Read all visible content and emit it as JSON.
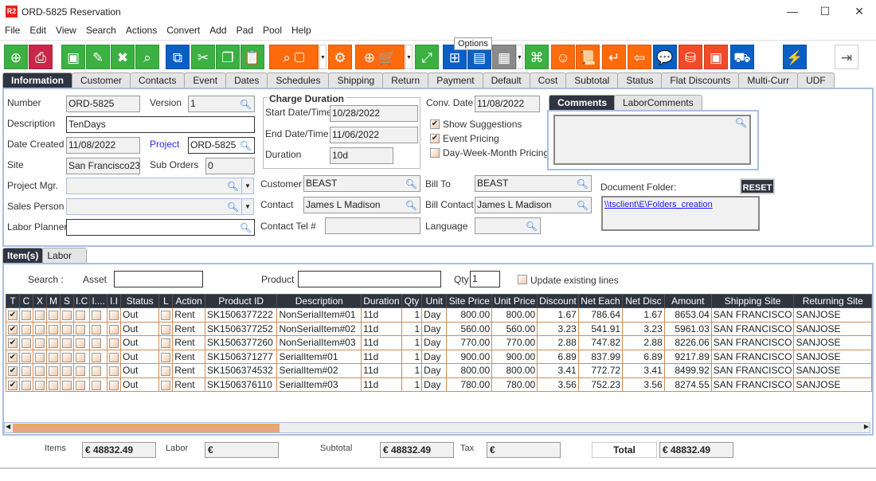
{
  "window": {
    "logo": "R2",
    "title": "ORD-5825 Reservation",
    "minimize": "—",
    "maximize": "☐",
    "close": "✕"
  },
  "menu": [
    "File",
    "Edit",
    "View",
    "Search",
    "Actions",
    "Convert",
    "Add",
    "Pad",
    "Pool",
    "Help"
  ],
  "tooltip": "Options",
  "colors": {
    "green": "#3cb043",
    "pink": "#c8274a",
    "blue": "#0a5fc4",
    "orange": "#ff6a0d",
    "red": "#f04a2a",
    "gray": "#8a8a8a",
    "header": "#2e3440",
    "grid_border": "#d08c58",
    "link": "#1a1aff"
  },
  "tabs": [
    "Information",
    "Customer",
    "Contacts",
    "Event",
    "Dates",
    "Schedules",
    "Shipping",
    "Return",
    "Payment",
    "Default",
    "Cost",
    "Subtotal",
    "Status",
    "Flat Discounts",
    "Multi-Curr",
    "UDF"
  ],
  "form": {
    "number_label": "Number",
    "number": "ORD-5825",
    "version_label": "Version",
    "version": "1",
    "description_label": "Description",
    "description": "TenDays",
    "date_created_label": "Date Created",
    "date_created": "11/08/2022",
    "project_label": "Project",
    "project": "ORD-5825",
    "site_label": "Site",
    "site": "San Francisco23",
    "sub_orders_label": "Sub Orders",
    "sub_orders": "0",
    "project_mgr_label": "Project Mgr.",
    "project_mgr": "",
    "sales_person_label": "Sales Person",
    "sales_person": "",
    "labor_planner_label": "Labor Planner",
    "labor_planner": "",
    "charge_duration_title": "Charge Duration",
    "start_label": "Start Date/Time",
    "start": "10/28/2022",
    "end_label": "End Date/Time",
    "end": "11/06/2022",
    "duration_label": "Duration",
    "duration": "10d",
    "conv_date_label": "Conv. Date",
    "conv_date": "11/08/2022",
    "show_suggestions": "Show Suggestions",
    "show_suggestions_checked": true,
    "event_pricing": "Event Pricing",
    "event_pricing_checked": true,
    "dwm_pricing": "Day-Week-Month Pricing",
    "dwm_pricing_checked": false,
    "comments_tab": "Comments",
    "labor_comments_tab": "LaborComments",
    "customer_label": "Customer",
    "customer": "BEAST",
    "contact_label": "Contact",
    "contact": "James L Madison",
    "contact_tel_label": "Contact Tel #",
    "contact_tel": "",
    "bill_to_label": "Bill To",
    "bill_to": "BEAST",
    "bill_contact_label": "Bill Contact",
    "bill_contact": "James L Madison",
    "language_label": "Language",
    "language": "",
    "doc_folder_label": "Document Folder:",
    "reset": "RESET",
    "doc_folder_link": "\\\\tsclient\\E\\Folders_creation"
  },
  "subtabs": [
    "Item(s)",
    "Labor"
  ],
  "filter": {
    "search_label": "Search :",
    "asset_label": "Asset",
    "asset": "",
    "product_label": "Product",
    "product": "",
    "qty_label": "Qty",
    "qty": "1",
    "update_existing": "Update existing lines"
  },
  "grid": {
    "columns": [
      "T",
      "C",
      "X",
      "M",
      "S",
      "I.C",
      "I....",
      "I.I",
      "Status",
      "L",
      "Action",
      "Product ID",
      "Description",
      "Duration",
      "Qty",
      "Unit",
      "Site Price",
      "Unit Price",
      "Discount",
      "Net Each",
      "Net Disc",
      "Amount",
      "Shipping Site",
      "Returning Site"
    ],
    "rows": [
      {
        "T": true,
        "Status": "Out",
        "Action": "Rent",
        "Product ID": "SK1506377222",
        "Description": "NonSerialItem#01",
        "Duration": "11d",
        "Qty": "1",
        "Unit": "Day",
        "Site Price": "800.00",
        "Unit Price": "800.00",
        "Discount": "1.67",
        "Net Each": "786.64",
        "Net Disc": "1.67",
        "Amount": "8653.04",
        "Shipping Site": "SAN FRANCISCO",
        "Returning Site": "SANJOSE"
      },
      {
        "T": true,
        "Status": "Out",
        "Action": "Rent",
        "Product ID": "SK1506377252",
        "Description": "NonSerialItem#02",
        "Duration": "11d",
        "Qty": "1",
        "Unit": "Day",
        "Site Price": "560.00",
        "Unit Price": "560.00",
        "Discount": "3.23",
        "Net Each": "541.91",
        "Net Disc": "3.23",
        "Amount": "5961.03",
        "Shipping Site": "SAN FRANCISCO",
        "Returning Site": "SANJOSE"
      },
      {
        "T": true,
        "Status": "Out",
        "Action": "Rent",
        "Product ID": "SK1506377260",
        "Description": "NonSerialItem#03",
        "Duration": "11d",
        "Qty": "1",
        "Unit": "Day",
        "Site Price": "770.00",
        "Unit Price": "770.00",
        "Discount": "2.88",
        "Net Each": "747.82",
        "Net Disc": "2.88",
        "Amount": "8226.06",
        "Shipping Site": "SAN FRANCISCO",
        "Returning Site": "SANJOSE"
      },
      {
        "T": true,
        "Status": "Out",
        "Action": "Rent",
        "Product ID": "SK1506371277",
        "Description": "SerialItem#01",
        "Duration": "11d",
        "Qty": "1",
        "Unit": "Day",
        "Site Price": "900.00",
        "Unit Price": "900.00",
        "Discount": "6.89",
        "Net Each": "837.99",
        "Net Disc": "6.89",
        "Amount": "9217.89",
        "Shipping Site": "SAN FRANCISCO",
        "Returning Site": "SANJOSE"
      },
      {
        "T": true,
        "Status": "Out",
        "Action": "Rent",
        "Product ID": "SK1506374532",
        "Description": "SerialItem#02",
        "Duration": "11d",
        "Qty": "1",
        "Unit": "Day",
        "Site Price": "800.00",
        "Unit Price": "800.00",
        "Discount": "3.41",
        "Net Each": "772.72",
        "Net Disc": "3.41",
        "Amount": "8499.92",
        "Shipping Site": "SAN FRANCISCO",
        "Returning Site": "SANJOSE"
      },
      {
        "T": true,
        "Status": "Out",
        "Action": "Rent",
        "Product ID": "SK1506376110",
        "Description": "SerialItem#03",
        "Duration": "11d",
        "Qty": "1",
        "Unit": "Day",
        "Site Price": "780.00",
        "Unit Price": "780.00",
        "Discount": "3.56",
        "Net Each": "752.23",
        "Net Disc": "3.56",
        "Amount": "8274.55",
        "Shipping Site": "SAN FRANCISCO",
        "Returning Site": "SANJOSE"
      }
    ]
  },
  "totals": {
    "items_label": "Items",
    "items": "€ 48832.49",
    "labor_label": "Labor",
    "labor": "€",
    "subtotal_label": "Subtotal",
    "subtotal": "€ 48832.49",
    "tax_label": "Tax",
    "tax": "€",
    "total_label": "Total",
    "total": "€ 48832.49"
  }
}
